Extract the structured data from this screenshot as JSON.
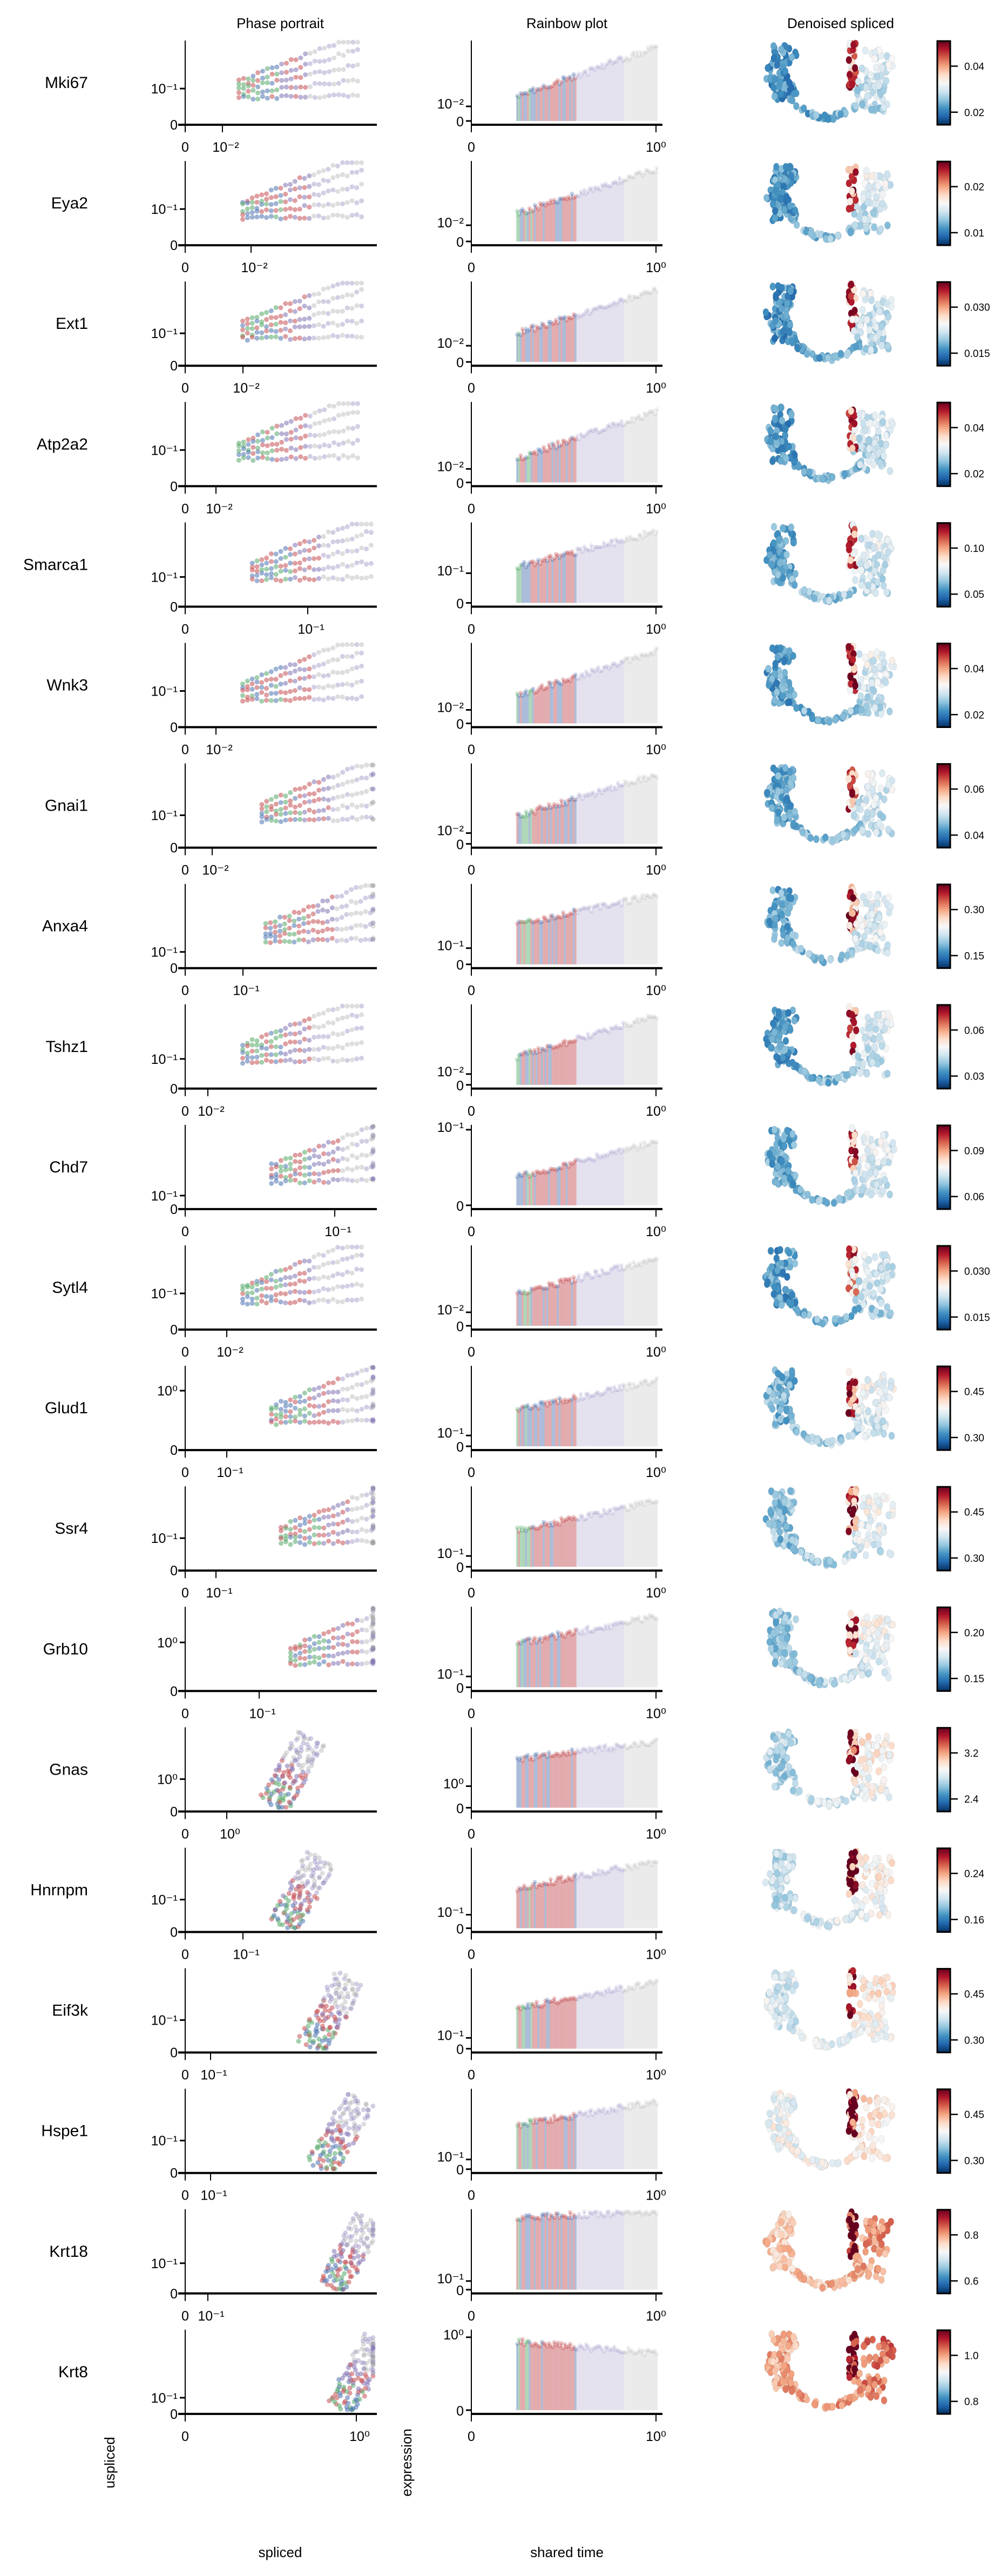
{
  "column_titles": {
    "phase": "Phase portrait",
    "rainbow": "Rainbow plot",
    "denoised": "Denoised spliced"
  },
  "axis_labels": {
    "phase_x": "spliced",
    "phase_y": "uspliced",
    "rainbow_x": "shared time",
    "rainbow_y": "expression"
  },
  "colors": {
    "clusters": [
      "#4c72b0",
      "#55a868",
      "#c44e52",
      "#8172b2",
      "#a0a0a0",
      "#b8a07a",
      "#dd8888"
    ],
    "colormap": "RdBu_r"
  },
  "chart_data": [
    {
      "gene": "Mki67",
      "phase": {
        "type": "scatter",
        "xticks": [
          "0",
          "10⁻²"
        ],
        "yticks": [
          "0",
          "10⁻¹"
        ]
      },
      "rainbow": {
        "type": "bar",
        "xticks": [
          "0",
          "10⁰"
        ],
        "yticks": [
          "0",
          "10⁻²"
        ]
      },
      "denoised": {
        "type": "scatter",
        "colorbar_ticks": [
          "0.02",
          "0.04"
        ]
      }
    },
    {
      "gene": "Eya2",
      "phase": {
        "type": "scatter",
        "xticks": [
          "0",
          "10⁻²"
        ],
        "yticks": [
          "0",
          "10⁻¹"
        ]
      },
      "rainbow": {
        "type": "bar",
        "xticks": [
          "0",
          "10⁰"
        ],
        "yticks": [
          "0",
          "10⁻²"
        ]
      },
      "denoised": {
        "type": "scatter",
        "colorbar_ticks": [
          "0.01",
          "0.02"
        ]
      }
    },
    {
      "gene": "Ext1",
      "phase": {
        "type": "scatter",
        "xticks": [
          "0",
          "10⁻²"
        ],
        "yticks": [
          "0",
          "10⁻¹"
        ]
      },
      "rainbow": {
        "type": "bar",
        "xticks": [
          "0",
          "10⁰"
        ],
        "yticks": [
          "0",
          "10⁻²"
        ]
      },
      "denoised": {
        "type": "scatter",
        "colorbar_ticks": [
          "0.015",
          "0.030"
        ]
      }
    },
    {
      "gene": "Atp2a2",
      "phase": {
        "type": "scatter",
        "xticks": [
          "0",
          "10⁻²"
        ],
        "yticks": [
          "0",
          "10⁻¹"
        ]
      },
      "rainbow": {
        "type": "bar",
        "xticks": [
          "0",
          "10⁰"
        ],
        "yticks": [
          "0",
          "10⁻²"
        ]
      },
      "denoised": {
        "type": "scatter",
        "colorbar_ticks": [
          "0.02",
          "0.04"
        ]
      }
    },
    {
      "gene": "Smarca1",
      "phase": {
        "type": "scatter",
        "xticks": [
          "0",
          "10⁻¹"
        ],
        "yticks": [
          "0",
          "10⁻¹"
        ]
      },
      "rainbow": {
        "type": "bar",
        "xticks": [
          "0",
          "10⁰"
        ],
        "yticks": [
          "0",
          "10⁻¹"
        ]
      },
      "denoised": {
        "type": "scatter",
        "colorbar_ticks": [
          "0.05",
          "0.10"
        ]
      }
    },
    {
      "gene": "Wnk3",
      "phase": {
        "type": "scatter",
        "xticks": [
          "0",
          "10⁻²"
        ],
        "yticks": [
          "0",
          "10⁻¹"
        ]
      },
      "rainbow": {
        "type": "bar",
        "xticks": [
          "0",
          "10⁰"
        ],
        "yticks": [
          "0",
          "10⁻²"
        ]
      },
      "denoised": {
        "type": "scatter",
        "colorbar_ticks": [
          "0.02",
          "0.04"
        ]
      }
    },
    {
      "gene": "Gnai1",
      "phase": {
        "type": "scatter",
        "xticks": [
          "0",
          "10⁻²"
        ],
        "yticks": [
          "0",
          "10⁻¹"
        ]
      },
      "rainbow": {
        "type": "bar",
        "xticks": [
          "0",
          "10⁰"
        ],
        "yticks": [
          "0",
          "10⁻²"
        ]
      },
      "denoised": {
        "type": "scatter",
        "colorbar_ticks": [
          "0.04",
          "0.06"
        ]
      }
    },
    {
      "gene": "Anxa4",
      "phase": {
        "type": "scatter",
        "xticks": [
          "0",
          "10⁻¹"
        ],
        "yticks": [
          "0",
          "10⁻¹"
        ]
      },
      "rainbow": {
        "type": "bar",
        "xticks": [
          "0",
          "10⁰"
        ],
        "yticks": [
          "0",
          "10⁻¹"
        ]
      },
      "denoised": {
        "type": "scatter",
        "colorbar_ticks": [
          "0.15",
          "0.30"
        ]
      }
    },
    {
      "gene": "Tshz1",
      "phase": {
        "type": "scatter",
        "xticks": [
          "0",
          "10⁻²"
        ],
        "yticks": [
          "0",
          "10⁻¹"
        ]
      },
      "rainbow": {
        "type": "bar",
        "xticks": [
          "0",
          "10⁰"
        ],
        "yticks": [
          "0",
          "10⁻²"
        ]
      },
      "denoised": {
        "type": "scatter",
        "colorbar_ticks": [
          "0.03",
          "0.06"
        ]
      }
    },
    {
      "gene": "Chd7",
      "phase": {
        "type": "scatter",
        "xticks": [
          "0",
          "10⁻¹"
        ],
        "yticks": [
          "0",
          "10⁻¹"
        ]
      },
      "rainbow": {
        "type": "bar",
        "xticks": [
          "0",
          "10⁰"
        ],
        "yticks": [
          "0",
          "10⁻¹"
        ]
      },
      "denoised": {
        "type": "scatter",
        "colorbar_ticks": [
          "0.06",
          "0.09"
        ]
      }
    },
    {
      "gene": "Sytl4",
      "phase": {
        "type": "scatter",
        "xticks": [
          "0",
          "10⁻²"
        ],
        "yticks": [
          "0",
          "10⁻¹"
        ]
      },
      "rainbow": {
        "type": "bar",
        "xticks": [
          "0",
          "10⁰"
        ],
        "yticks": [
          "0",
          "10⁻²"
        ]
      },
      "denoised": {
        "type": "scatter",
        "colorbar_ticks": [
          "0.015",
          "0.030"
        ]
      }
    },
    {
      "gene": "Glud1",
      "phase": {
        "type": "scatter",
        "xticks": [
          "0",
          "10⁻¹"
        ],
        "yticks": [
          "0",
          "10⁰"
        ]
      },
      "rainbow": {
        "type": "bar",
        "xticks": [
          "0",
          "10⁰"
        ],
        "yticks": [
          "0",
          "10⁻¹"
        ]
      },
      "denoised": {
        "type": "scatter",
        "colorbar_ticks": [
          "0.30",
          "0.45"
        ]
      }
    },
    {
      "gene": "Ssr4",
      "phase": {
        "type": "scatter",
        "xticks": [
          "0",
          "10⁻¹"
        ],
        "yticks": [
          "0",
          "10⁻¹"
        ]
      },
      "rainbow": {
        "type": "bar",
        "xticks": [
          "0",
          "10⁰"
        ],
        "yticks": [
          "0",
          "10⁻¹"
        ]
      },
      "denoised": {
        "type": "scatter",
        "colorbar_ticks": [
          "0.30",
          "0.45"
        ]
      }
    },
    {
      "gene": "Grb10",
      "phase": {
        "type": "scatter",
        "xticks": [
          "0",
          "10⁻¹"
        ],
        "yticks": [
          "0",
          "10⁰"
        ]
      },
      "rainbow": {
        "type": "bar",
        "xticks": [
          "0",
          "10⁰"
        ],
        "yticks": [
          "0",
          "10⁻¹"
        ]
      },
      "denoised": {
        "type": "scatter",
        "colorbar_ticks": [
          "0.15",
          "0.20"
        ]
      }
    },
    {
      "gene": "Gnas",
      "phase": {
        "type": "scatter",
        "xticks": [
          "0",
          "10⁰"
        ],
        "yticks": [
          "0",
          "10⁰"
        ]
      },
      "rainbow": {
        "type": "bar",
        "xticks": [
          "0",
          "10⁰"
        ],
        "yticks": [
          "0",
          "10⁰"
        ]
      },
      "denoised": {
        "type": "scatter",
        "colorbar_ticks": [
          "2.4",
          "3.2"
        ]
      }
    },
    {
      "gene": "Hnrnpm",
      "phase": {
        "type": "scatter",
        "xticks": [
          "0",
          "10⁻¹"
        ],
        "yticks": [
          "0",
          "10⁻¹"
        ]
      },
      "rainbow": {
        "type": "bar",
        "xticks": [
          "0",
          "10⁰"
        ],
        "yticks": [
          "0",
          "10⁻¹"
        ]
      },
      "denoised": {
        "type": "scatter",
        "colorbar_ticks": [
          "0.16",
          "0.24"
        ]
      }
    },
    {
      "gene": "Eif3k",
      "phase": {
        "type": "scatter",
        "xticks": [
          "0",
          "10⁻¹"
        ],
        "yticks": [
          "0",
          "10⁻¹"
        ]
      },
      "rainbow": {
        "type": "bar",
        "xticks": [
          "0",
          "10⁰"
        ],
        "yticks": [
          "0",
          "10⁻¹"
        ]
      },
      "denoised": {
        "type": "scatter",
        "colorbar_ticks": [
          "0.30",
          "0.45"
        ]
      }
    },
    {
      "gene": "Hspe1",
      "phase": {
        "type": "scatter",
        "xticks": [
          "0",
          "10⁻¹"
        ],
        "yticks": [
          "0",
          "10⁻¹"
        ]
      },
      "rainbow": {
        "type": "bar",
        "xticks": [
          "0",
          "10⁰"
        ],
        "yticks": [
          "0",
          "10⁻¹"
        ]
      },
      "denoised": {
        "type": "scatter",
        "colorbar_ticks": [
          "0.30",
          "0.45"
        ]
      }
    },
    {
      "gene": "Krt18",
      "phase": {
        "type": "scatter",
        "xticks": [
          "0",
          "10⁻¹"
        ],
        "yticks": [
          "0",
          "10⁻¹"
        ]
      },
      "rainbow": {
        "type": "bar",
        "xticks": [
          "0",
          "10⁰"
        ],
        "yticks": [
          "0",
          "10⁻¹"
        ]
      },
      "denoised": {
        "type": "scatter",
        "colorbar_ticks": [
          "0.6",
          "0.8"
        ]
      }
    },
    {
      "gene": "Krt8",
      "phase": {
        "type": "scatter",
        "xticks": [
          "0",
          "10⁰"
        ],
        "yticks": [
          "0",
          "10⁻¹"
        ]
      },
      "rainbow": {
        "type": "bar",
        "xticks": [
          "0",
          "10⁰"
        ],
        "yticks": [
          "0",
          "10⁰"
        ]
      },
      "denoised": {
        "type": "scatter",
        "colorbar_ticks": [
          "0.8",
          "1.0"
        ]
      }
    }
  ]
}
